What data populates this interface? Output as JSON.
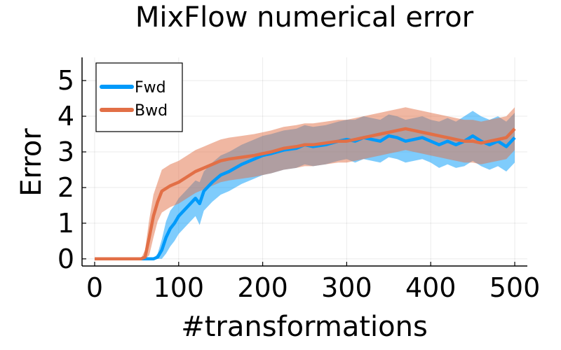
{
  "chart_data": {
    "type": "line",
    "title": "MixFlow numerical error",
    "xlabel": "#transformations",
    "ylabel": "Error",
    "xlim": [
      -15,
      515
    ],
    "ylim": [
      -0.2,
      5.65
    ],
    "xticks": [
      0,
      100,
      200,
      300,
      400,
      500
    ],
    "yticks": [
      0,
      1,
      2,
      3,
      4,
      5
    ],
    "xtick_labels": [
      "0",
      "100",
      "200",
      "300",
      "400",
      "500"
    ],
    "ytick_labels": [
      "0",
      "1",
      "2",
      "3",
      "4",
      "5"
    ],
    "grid": true,
    "legend": {
      "position": "top-left"
    },
    "series": [
      {
        "name": "Fwd",
        "color": "#009AFA",
        "x": [
          0,
          20,
          40,
          60,
          70,
          75,
          80,
          85,
          90,
          95,
          100,
          110,
          120,
          125,
          130,
          140,
          150,
          160,
          175,
          190,
          200,
          210,
          225,
          240,
          250,
          260,
          275,
          290,
          300,
          310,
          320,
          330,
          340,
          350,
          360,
          370,
          380,
          390,
          400,
          410,
          420,
          430,
          440,
          450,
          460,
          470,
          480,
          490,
          500
        ],
        "mean": [
          0,
          0,
          0,
          0,
          0,
          0.05,
          0.25,
          0.6,
          0.85,
          1.0,
          1.2,
          1.45,
          1.7,
          1.55,
          1.9,
          2.15,
          2.35,
          2.45,
          2.65,
          2.8,
          2.9,
          2.95,
          3.05,
          3.1,
          3.2,
          3.15,
          3.2,
          3.3,
          3.35,
          3.3,
          3.4,
          3.35,
          3.3,
          3.45,
          3.4,
          3.3,
          3.35,
          3.4,
          3.3,
          3.2,
          3.3,
          3.2,
          3.3,
          3.45,
          3.3,
          3.2,
          3.3,
          3.15,
          3.4
        ],
        "lower": [
          0,
          0,
          0,
          0,
          0,
          0,
          0,
          0.15,
          0.35,
          0.5,
          0.7,
          0.95,
          1.2,
          0.95,
          1.35,
          1.6,
          1.8,
          1.9,
          2.1,
          2.25,
          2.35,
          2.4,
          2.5,
          2.55,
          2.65,
          2.6,
          2.65,
          2.75,
          2.8,
          2.7,
          2.8,
          2.75,
          2.7,
          2.85,
          2.8,
          2.7,
          2.75,
          2.8,
          2.7,
          2.55,
          2.65,
          2.55,
          2.6,
          2.75,
          2.6,
          2.5,
          2.6,
          2.45,
          2.7
        ],
        "upper": [
          0,
          0,
          0,
          0,
          0,
          0.15,
          0.55,
          1.05,
          1.35,
          1.5,
          1.7,
          1.95,
          2.2,
          2.15,
          2.45,
          2.7,
          2.9,
          3.0,
          3.2,
          3.35,
          3.45,
          3.5,
          3.6,
          3.65,
          3.75,
          3.7,
          3.75,
          3.85,
          3.9,
          3.9,
          4.0,
          3.95,
          3.9,
          4.05,
          4.0,
          3.9,
          3.95,
          4.0,
          3.9,
          3.85,
          3.95,
          3.85,
          4.0,
          4.15,
          4.0,
          3.9,
          4.0,
          3.85,
          4.1
        ]
      },
      {
        "name": "Bwd",
        "color": "#E26F46",
        "x": [
          0,
          20,
          40,
          55,
          60,
          65,
          70,
          75,
          80,
          90,
          100,
          110,
          120,
          130,
          140,
          150,
          160,
          175,
          190,
          200,
          210,
          225,
          240,
          250,
          260,
          275,
          290,
          300,
          310,
          320,
          330,
          340,
          350,
          360,
          370,
          380,
          390,
          400,
          410,
          420,
          430,
          440,
          450,
          460,
          470,
          480,
          490,
          500
        ],
        "mean": [
          0,
          0,
          0,
          0,
          0.05,
          0.6,
          1.2,
          1.6,
          1.9,
          2.05,
          2.15,
          2.3,
          2.45,
          2.55,
          2.65,
          2.75,
          2.8,
          2.85,
          2.9,
          2.95,
          3.0,
          3.1,
          3.15,
          3.2,
          3.2,
          3.25,
          3.3,
          3.3,
          3.35,
          3.4,
          3.45,
          3.5,
          3.55,
          3.6,
          3.65,
          3.6,
          3.55,
          3.5,
          3.45,
          3.4,
          3.35,
          3.3,
          3.3,
          3.25,
          3.3,
          3.35,
          3.4,
          3.65
        ],
        "lower": [
          0,
          0,
          0,
          0,
          0,
          0.1,
          0.6,
          1.05,
          1.3,
          1.45,
          1.55,
          1.7,
          1.85,
          1.95,
          2.05,
          2.15,
          2.2,
          2.25,
          2.3,
          2.35,
          2.4,
          2.5,
          2.55,
          2.6,
          2.6,
          2.65,
          2.7,
          2.7,
          2.75,
          2.8,
          2.85,
          2.9,
          2.95,
          3.0,
          3.05,
          3.0,
          2.95,
          2.9,
          2.85,
          2.8,
          2.75,
          2.7,
          2.7,
          2.65,
          2.7,
          2.75,
          2.8,
          3.05
        ],
        "upper": [
          0,
          0,
          0,
          0,
          0.25,
          1.1,
          1.8,
          2.15,
          2.5,
          2.65,
          2.75,
          2.9,
          3.05,
          3.15,
          3.25,
          3.35,
          3.4,
          3.45,
          3.5,
          3.55,
          3.6,
          3.7,
          3.75,
          3.8,
          3.8,
          3.85,
          3.9,
          3.9,
          3.95,
          4.0,
          4.05,
          4.1,
          4.15,
          4.2,
          4.25,
          4.2,
          4.15,
          4.1,
          4.05,
          4.0,
          3.95,
          3.9,
          3.9,
          3.85,
          3.9,
          3.95,
          4.0,
          4.25
        ]
      }
    ]
  }
}
